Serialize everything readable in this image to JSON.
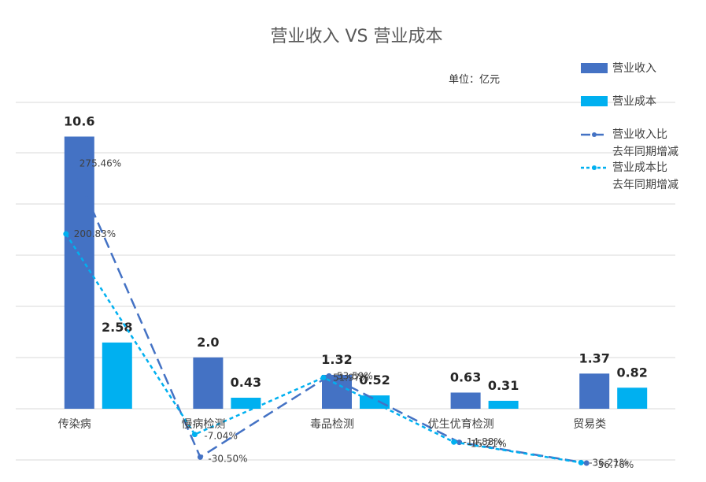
{
  "chart_data": {
    "type": "bar",
    "title": "营业收入 VS  营业成本",
    "unit_label": "单位：亿元",
    "categories": [
      "传染病",
      "慢病检测",
      "毒品检测",
      "优生优育检测",
      "贸易类"
    ],
    "ylim": [
      0,
      12
    ],
    "y2lim": [
      -120,
      420
    ],
    "grid": true,
    "legend_position": "right",
    "series": [
      {
        "name": "营业收入",
        "kind": "bar",
        "color": "#4472C4",
        "values": [
          10.6,
          2.0,
          1.32,
          0.63,
          1.37
        ],
        "labels": [
          "10.6",
          "2.0",
          "1.32",
          "0.63",
          "1.37"
        ]
      },
      {
        "name": "营业成本",
        "kind": "bar",
        "color": "#00B0F0",
        "values": [
          2.58,
          0.43,
          0.52,
          0.31,
          0.82
        ],
        "labels": [
          "2.58",
          "0.43",
          "0.52",
          "0.31",
          "0.82"
        ]
      },
      {
        "name": "营业收入比去年同期增减",
        "legend_lines": [
          "营业收入比",
          "去年同期增减"
        ],
        "kind": "line",
        "dash": "long",
        "color": "#4472C4",
        "values": [
          275.46,
          -30.5,
          53.59,
          -15.21,
          -36.76
        ],
        "labels": [
          "275.46%",
          "-30.50%",
          "53.59%",
          "-15.21%",
          "-36.76%"
        ]
      },
      {
        "name": "营业成本比去年同期增减",
        "legend_lines": [
          "营业成本比",
          "去年同期增减"
        ],
        "kind": "line",
        "dash": "short",
        "color": "#00B0F0",
        "values": [
          200.83,
          -7.04,
          51.97,
          -14.88,
          -36.21
        ],
        "labels": [
          "200.83%",
          "-7.04%",
          "51.97%",
          "-14.88%",
          "-36.21%"
        ]
      }
    ]
  }
}
